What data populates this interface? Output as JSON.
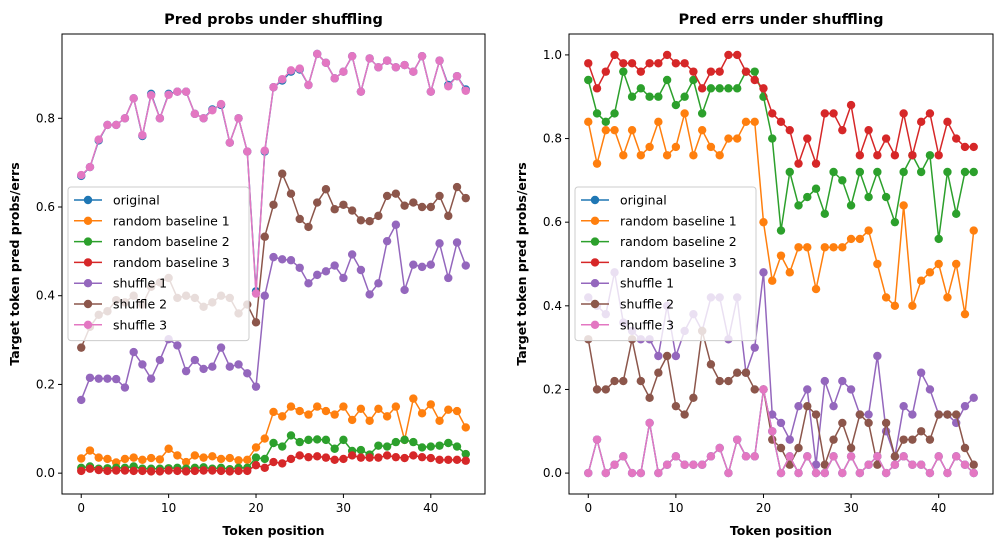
{
  "chart_data": [
    {
      "type": "line",
      "title": "Pred probs under shuffling",
      "xlabel": "Token position",
      "ylabel": "Target token pred probs/errs",
      "xlim": [
        -2.2,
        46.2
      ],
      "ylim": [
        -0.047,
        0.99
      ],
      "xticks": [
        0,
        10,
        20,
        30,
        40
      ],
      "yticks": [
        0.0,
        0.2,
        0.4,
        0.6,
        0.8
      ],
      "ytick_labels": [
        "0.0",
        "0.2",
        "0.4",
        "0.6",
        "0.8"
      ],
      "grid": false,
      "legend_position": "center-left",
      "series": [
        {
          "name": "original",
          "color": "#1f77b4",
          "values": [
            0.67,
            0.69,
            0.75,
            0.785,
            0.785,
            0.8,
            0.845,
            0.76,
            0.855,
            0.8,
            0.855,
            0.86,
            0.86,
            0.81,
            0.8,
            0.82,
            0.83,
            0.745,
            0.8,
            0.725,
            0.41,
            0.725,
            0.87,
            0.885,
            0.905,
            0.91,
            0.875,
            0.945,
            0.925,
            0.89,
            0.905,
            0.94,
            0.86,
            0.935,
            0.915,
            0.93,
            0.915,
            0.92,
            0.905,
            0.94,
            0.86,
            0.93,
            0.875,
            0.895,
            0.865
          ]
        },
        {
          "name": "random baseline 1",
          "color": "#ff7f0e",
          "values": [
            0.033,
            0.051,
            0.035,
            0.032,
            0.024,
            0.032,
            0.035,
            0.03,
            0.034,
            0.031,
            0.055,
            0.04,
            0.025,
            0.04,
            0.035,
            0.038,
            0.032,
            0.034,
            0.029,
            0.03,
            0.058,
            0.078,
            0.138,
            0.128,
            0.15,
            0.14,
            0.132,
            0.15,
            0.14,
            0.132,
            0.15,
            0.12,
            0.145,
            0.118,
            0.145,
            0.128,
            0.15,
            0.075,
            0.168,
            0.135,
            0.155,
            0.118,
            0.143,
            0.14,
            0.103
          ]
        },
        {
          "name": "random baseline 2",
          "color": "#2ca02c",
          "values": [
            0.012,
            0.015,
            0.01,
            0.011,
            0.012,
            0.012,
            0.015,
            0.01,
            0.01,
            0.01,
            0.011,
            0.012,
            0.01,
            0.012,
            0.013,
            0.01,
            0.012,
            0.009,
            0.012,
            0.012,
            0.035,
            0.032,
            0.068,
            0.06,
            0.085,
            0.07,
            0.075,
            0.076,
            0.075,
            0.055,
            0.075,
            0.05,
            0.052,
            0.042,
            0.062,
            0.06,
            0.07,
            0.075,
            0.07,
            0.058,
            0.06,
            0.062,
            0.068,
            0.06,
            0.043
          ]
        },
        {
          "name": "random baseline 3",
          "color": "#d62728",
          "values": [
            0.005,
            0.01,
            0.007,
            0.005,
            0.006,
            0.006,
            0.005,
            0.005,
            0.004,
            0.004,
            0.006,
            0.005,
            0.004,
            0.005,
            0.006,
            0.006,
            0.005,
            0.004,
            0.005,
            0.005,
            0.018,
            0.012,
            0.025,
            0.022,
            0.032,
            0.04,
            0.036,
            0.038,
            0.035,
            0.03,
            0.032,
            0.04,
            0.035,
            0.035,
            0.035,
            0.04,
            0.036,
            0.034,
            0.04,
            0.036,
            0.034,
            0.03,
            0.03,
            0.03,
            0.028
          ]
        },
        {
          "name": "shuffle 1",
          "color": "#9467bd",
          "values": [
            0.165,
            0.215,
            0.213,
            0.213,
            0.212,
            0.193,
            0.273,
            0.245,
            0.213,
            0.255,
            0.302,
            0.288,
            0.23,
            0.255,
            0.235,
            0.24,
            0.283,
            0.24,
            0.245,
            0.225,
            0.195,
            0.4,
            0.487,
            0.482,
            0.48,
            0.463,
            0.428,
            0.447,
            0.455,
            0.468,
            0.44,
            0.493,
            0.458,
            0.403,
            0.428,
            0.523,
            0.56,
            0.413,
            0.47,
            0.465,
            0.47,
            0.518,
            0.44,
            0.52,
            0.468
          ]
        },
        {
          "name": "shuffle 2",
          "color": "#8c564b",
          "values": [
            0.283,
            0.33,
            0.357,
            0.365,
            0.39,
            0.385,
            0.4,
            0.38,
            0.42,
            0.43,
            0.44,
            0.395,
            0.4,
            0.395,
            0.375,
            0.385,
            0.4,
            0.395,
            0.36,
            0.38,
            0.34,
            0.533,
            0.605,
            0.675,
            0.63,
            0.573,
            0.555,
            0.61,
            0.64,
            0.595,
            0.605,
            0.592,
            0.57,
            0.568,
            0.58,
            0.625,
            0.63,
            0.603,
            0.61,
            0.6,
            0.6,
            0.625,
            0.58,
            0.645,
            0.62
          ]
        },
        {
          "name": "shuffle 3",
          "color": "#e377c2",
          "values": [
            0.672,
            0.69,
            0.752,
            0.785,
            0.785,
            0.8,
            0.845,
            0.762,
            0.852,
            0.8,
            0.853,
            0.86,
            0.86,
            0.81,
            0.8,
            0.818,
            0.832,
            0.745,
            0.8,
            0.725,
            0.405,
            0.727,
            0.87,
            0.888,
            0.908,
            0.912,
            0.875,
            0.945,
            0.925,
            0.89,
            0.905,
            0.94,
            0.86,
            0.935,
            0.915,
            0.93,
            0.915,
            0.92,
            0.905,
            0.94,
            0.86,
            0.93,
            0.872,
            0.895,
            0.862
          ]
        }
      ]
    },
    {
      "type": "line",
      "title": "Pred errs under shuffling",
      "xlabel": "Token position",
      "ylabel": "Target token pred probs/errs",
      "xlim": [
        -2.2,
        46.2
      ],
      "ylim": [
        -0.05,
        1.05
      ],
      "xticks": [
        0,
        10,
        20,
        30,
        40
      ],
      "yticks": [
        0.0,
        0.2,
        0.4,
        0.6,
        0.8,
        1.0
      ],
      "ytick_labels": [
        "0.0",
        "0.2",
        "0.4",
        "0.6",
        "0.8",
        "1.0"
      ],
      "grid": false,
      "legend_position": "center-left",
      "series": [
        {
          "name": "original",
          "color": "#1f77b4",
          "values": [
            0.0,
            0.08,
            0.0,
            0.02,
            0.04,
            0.0,
            0.0,
            0.12,
            0.0,
            0.02,
            0.04,
            0.02,
            0.02,
            0.02,
            0.04,
            0.06,
            0.0,
            0.08,
            0.04,
            0.04,
            0.2,
            0.1,
            0.0,
            0.04,
            0.0,
            0.04,
            0.0,
            0.0,
            0.04,
            0.0,
            0.04,
            0.0,
            0.02,
            0.04,
            0.0,
            0.02,
            0.04,
            0.02,
            0.02,
            0.0,
            0.04,
            0.0,
            0.04,
            0.02,
            0.0
          ]
        },
        {
          "name": "random baseline 1",
          "color": "#ff7f0e",
          "values": [
            0.84,
            0.74,
            0.82,
            0.82,
            0.76,
            0.82,
            0.76,
            0.78,
            0.84,
            0.76,
            0.78,
            0.86,
            0.76,
            0.82,
            0.78,
            0.76,
            0.8,
            0.8,
            0.84,
            0.84,
            0.6,
            0.46,
            0.52,
            0.48,
            0.54,
            0.54,
            0.44,
            0.54,
            0.54,
            0.54,
            0.56,
            0.56,
            0.58,
            0.5,
            0.42,
            0.4,
            0.64,
            0.4,
            0.46,
            0.48,
            0.5,
            0.42,
            0.5,
            0.38,
            0.58
          ]
        },
        {
          "name": "random baseline 2",
          "color": "#2ca02c",
          "values": [
            0.94,
            0.86,
            0.84,
            0.86,
            0.96,
            0.9,
            0.92,
            0.9,
            0.9,
            0.94,
            0.88,
            0.9,
            0.94,
            0.86,
            0.92,
            0.92,
            0.92,
            0.92,
            0.96,
            0.96,
            0.9,
            0.8,
            0.58,
            0.72,
            0.64,
            0.66,
            0.68,
            0.62,
            0.72,
            0.7,
            0.64,
            0.72,
            0.66,
            0.72,
            0.66,
            0.6,
            0.72,
            0.76,
            0.72,
            0.76,
            0.56,
            0.72,
            0.62,
            0.72,
            0.72
          ]
        },
        {
          "name": "random baseline 3",
          "color": "#d62728",
          "values": [
            0.98,
            0.92,
            0.96,
            1.0,
            0.98,
            0.98,
            0.96,
            0.98,
            0.98,
            1.0,
            0.98,
            0.98,
            0.96,
            0.92,
            0.96,
            0.96,
            1.0,
            1.0,
            0.96,
            0.94,
            0.92,
            0.86,
            0.84,
            0.82,
            0.74,
            0.8,
            0.74,
            0.86,
            0.86,
            0.82,
            0.88,
            0.76,
            0.82,
            0.76,
            0.8,
            0.76,
            0.86,
            0.76,
            0.84,
            0.86,
            0.76,
            0.84,
            0.8,
            0.78,
            0.78
          ]
        },
        {
          "name": "shuffle 1",
          "color": "#9467bd",
          "values": [
            0.42,
            0.4,
            0.38,
            0.48,
            0.36,
            0.34,
            0.32,
            0.32,
            0.28,
            0.4,
            0.28,
            0.34,
            0.38,
            0.34,
            0.42,
            0.42,
            0.32,
            0.42,
            0.24,
            0.3,
            0.48,
            0.14,
            0.12,
            0.08,
            0.16,
            0.2,
            0.02,
            0.22,
            0.16,
            0.22,
            0.2,
            0.14,
            0.14,
            0.28,
            0.1,
            0.04,
            0.16,
            0.14,
            0.24,
            0.2,
            0.14,
            0.14,
            0.12,
            0.16,
            0.18
          ]
        },
        {
          "name": "shuffle 2",
          "color": "#8c564b",
          "values": [
            0.32,
            0.2,
            0.2,
            0.22,
            0.22,
            0.32,
            0.22,
            0.18,
            0.24,
            0.28,
            0.16,
            0.14,
            0.18,
            0.34,
            0.26,
            0.22,
            0.22,
            0.24,
            0.24,
            0.2,
            0.2,
            0.08,
            0.06,
            0.02,
            0.06,
            0.16,
            0.14,
            0.02,
            0.08,
            0.12,
            0.06,
            0.14,
            0.12,
            0.02,
            0.12,
            0.04,
            0.08,
            0.08,
            0.1,
            0.08,
            0.14,
            0.14,
            0.14,
            0.06,
            0.02
          ]
        },
        {
          "name": "shuffle 3",
          "color": "#e377c2",
          "values": [
            0.0,
            0.08,
            0.0,
            0.02,
            0.04,
            0.0,
            0.0,
            0.12,
            0.0,
            0.02,
            0.04,
            0.02,
            0.02,
            0.02,
            0.04,
            0.06,
            0.0,
            0.08,
            0.04,
            0.04,
            0.2,
            0.1,
            0.0,
            0.04,
            0.0,
            0.04,
            0.0,
            0.0,
            0.04,
            0.0,
            0.04,
            0.0,
            0.02,
            0.04,
            0.0,
            0.02,
            0.04,
            0.02,
            0.02,
            0.0,
            0.04,
            0.0,
            0.04,
            0.02,
            0.0
          ]
        }
      ]
    }
  ]
}
